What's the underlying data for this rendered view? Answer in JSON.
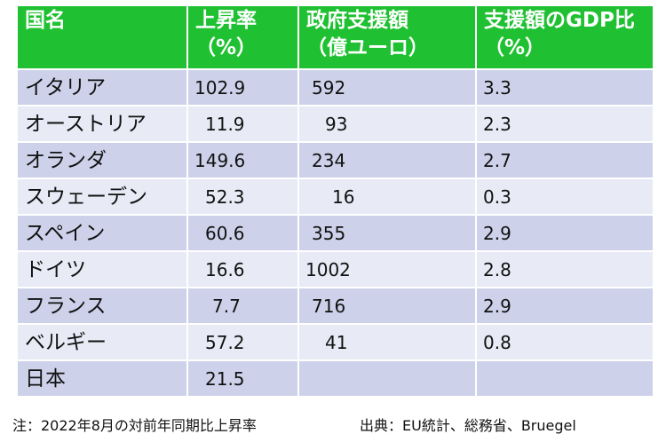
{
  "table": {
    "headers": [
      {
        "line1": "国名",
        "line2": ""
      },
      {
        "line1": "上昇率",
        "line2": "（%）"
      },
      {
        "line1": "政府支援額",
        "line2": "（億ユーロ）"
      },
      {
        "line1": "支援額のGDP比",
        "line2": "（%）"
      }
    ],
    "rows": [
      {
        "country": "イタリア",
        "rate": "102.9",
        "aid": "592",
        "gdp": "3.3"
      },
      {
        "country": "オーストリア",
        "rate": "11.9",
        "aid": "93",
        "gdp": "2.3"
      },
      {
        "country": "オランダ",
        "rate": "149.6",
        "aid": "234",
        "gdp": "2.7"
      },
      {
        "country": "スウェーデン",
        "rate": "52.3",
        "aid": "16",
        "gdp": "0.3"
      },
      {
        "country": "スペイン",
        "rate": "60.6",
        "aid": "355",
        "gdp": "2.9"
      },
      {
        "country": "ドイツ",
        "rate": "16.6",
        "aid": "1002",
        "gdp": "2.8"
      },
      {
        "country": "フランス",
        "rate": "7.7",
        "aid": "716",
        "gdp": "2.9"
      },
      {
        "country": "ベルギー",
        "rate": "57.2",
        "aid": "41",
        "gdp": "0.8"
      },
      {
        "country": "日本",
        "rate": "21.5",
        "aid": "",
        "gdp": ""
      }
    ]
  },
  "footnote": {
    "note": "注：2022年8月の対前年同期比上昇率",
    "source": "出典：EU統計、総務省、Bruegel"
  }
}
